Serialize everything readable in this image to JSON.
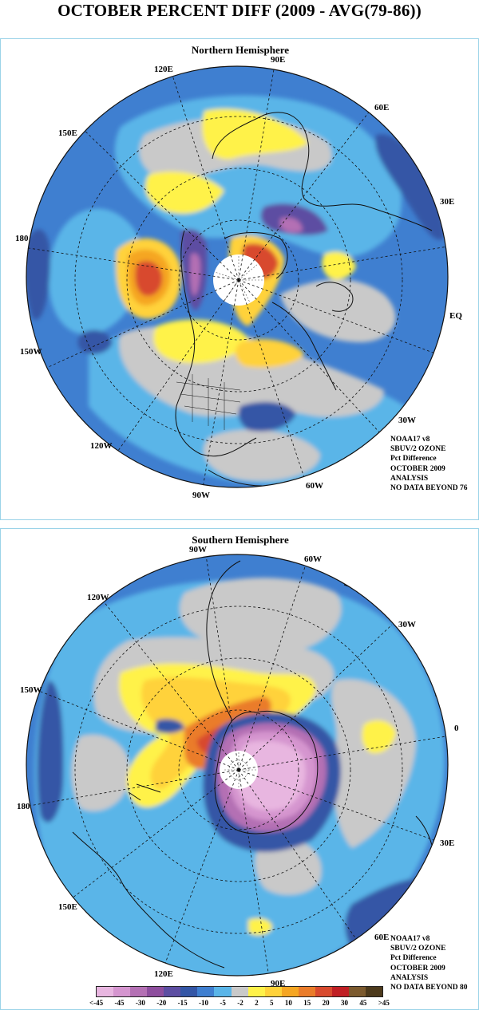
{
  "title": "OCTOBER PERCENT DIFF (2009 - AVG(79-86))",
  "north": {
    "title": "Northern Hemisphere",
    "labels": {
      "e90": "90E",
      "e120": "120E",
      "e60": "60E",
      "e150": "150E",
      "e30": "30E",
      "deg180": "180",
      "eq": "EQ",
      "w150": "150W",
      "w30": "30W",
      "w120": "120W",
      "w60": "60W",
      "w90": "90W"
    },
    "info": [
      "NOAA17 v8",
      "SBUV/2 OZONE",
      "Pct Difference",
      "OCTOBER 2009",
      "ANALYSIS",
      "NO DATA BEYOND  76"
    ]
  },
  "south": {
    "title": "Southern Hemisphere",
    "labels": {
      "w90": "90W",
      "w60": "60W",
      "w120": "120W",
      "w30": "30W",
      "w150": "150W",
      "zero": "0",
      "deg180": "180",
      "e30": "30E",
      "e150": "150E",
      "e60": "60E",
      "e120": "120E",
      "e90": "90E"
    },
    "info": [
      "NOAA17 v8",
      "SBUV/2 OZONE",
      "Pct Difference",
      "OCTOBER 2009",
      "ANALYSIS",
      "NO DATA BEYOND  80"
    ]
  },
  "legend": {
    "labels": [
      "<-45",
      "-45",
      "-30",
      "-20",
      "-15",
      "-10",
      "-5",
      "-2",
      "2",
      "5",
      "10",
      "15",
      "20",
      "30",
      "45",
      ">45"
    ],
    "colors": [
      "#e8b6e0",
      "#d595cf",
      "#b470b4",
      "#8e4e9e",
      "#5d4ea2",
      "#3456a6",
      "#3f7fd0",
      "#5ab5e8",
      "#c9c9c9",
      "#fff24a",
      "#ffd23a",
      "#f5a623",
      "#ea7c2a",
      "#d84a2e",
      "#c01f24",
      "#7c5a2e",
      "#4d3a1c"
    ]
  }
}
